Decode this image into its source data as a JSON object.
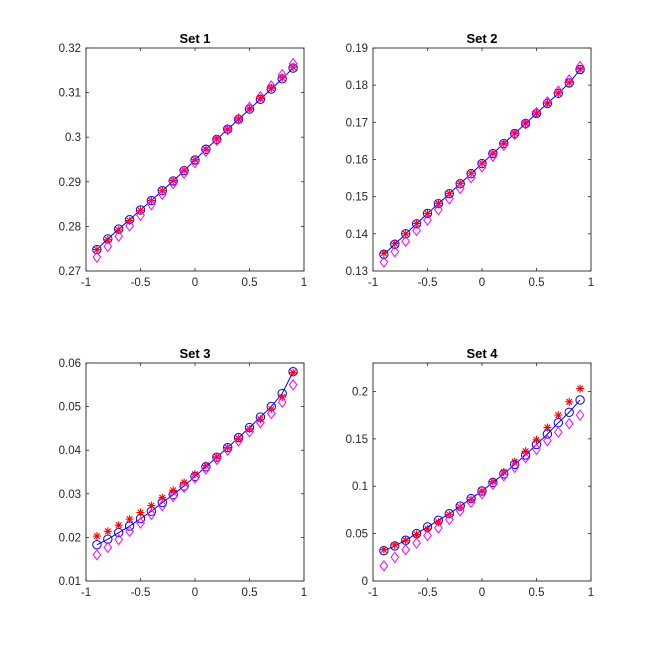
{
  "figure": {
    "background": "#ffffff"
  },
  "series_styles": [
    {
      "marker": "circle",
      "line": true,
      "color": "#0000ff"
    },
    {
      "marker": "asterisk",
      "line": false,
      "color": "#ff0000"
    },
    {
      "marker": "diamond",
      "line": false,
      "color": "#ff00ff"
    }
  ],
  "chart_data": [
    {
      "type": "line",
      "title": "Set 1",
      "xlim": [
        -1,
        1
      ],
      "ylim": [
        0.27,
        0.32
      ],
      "grid": true,
      "xticks": [
        -1,
        -0.5,
        0,
        0.5,
        1
      ],
      "xtick_labels": [
        "-1",
        "-0.5",
        "0",
        "0.5",
        "1"
      ],
      "yticks": [
        0.27,
        0.28,
        0.29,
        0.3,
        0.31,
        0.32
      ],
      "ytick_labels": [
        "0.27",
        "0.28",
        "0.29",
        "0.3",
        "0.31",
        "0.32"
      ],
      "x": [
        -0.9,
        -0.8,
        -0.7,
        -0.6,
        -0.5,
        -0.4,
        -0.3,
        -0.2,
        -0.1,
        0.0,
        0.1,
        0.2,
        0.3,
        0.4,
        0.5,
        0.6,
        0.7,
        0.8,
        0.9
      ],
      "series": [
        {
          "values": [
            0.2748,
            0.2772,
            0.2794,
            0.2815,
            0.2837,
            0.2858,
            0.288,
            0.2902,
            0.2925,
            0.2949,
            0.2973,
            0.2995,
            0.3018,
            0.304,
            0.3063,
            0.3085,
            0.3108,
            0.3131,
            0.3155
          ]
        },
        {
          "values": [
            0.2748,
            0.277,
            0.2792,
            0.2813,
            0.2836,
            0.2858,
            0.288,
            0.2903,
            0.2926,
            0.295,
            0.2973,
            0.2996,
            0.3018,
            0.3041,
            0.3064,
            0.3087,
            0.311,
            0.3133,
            0.3157
          ]
        },
        {
          "values": [
            0.2731,
            0.2755,
            0.2778,
            0.2801,
            0.2825,
            0.2849,
            0.2872,
            0.2896,
            0.2919,
            0.2943,
            0.2968,
            0.2993,
            0.3017,
            0.3041,
            0.3067,
            0.3091,
            0.3115,
            0.314,
            0.3165
          ]
        }
      ]
    },
    {
      "type": "line",
      "title": "Set 2",
      "xlim": [
        -1,
        1
      ],
      "ylim": [
        0.13,
        0.19
      ],
      "grid": true,
      "xticks": [
        -1,
        -0.5,
        0,
        0.5,
        1
      ],
      "xtick_labels": [
        "-1",
        "-0.5",
        "0",
        "0.5",
        "1"
      ],
      "yticks": [
        0.13,
        0.14,
        0.15,
        0.16,
        0.17,
        0.18,
        0.19
      ],
      "ytick_labels": [
        "0.13",
        "0.14",
        "0.15",
        "0.16",
        "0.17",
        "0.18",
        "0.19"
      ],
      "x": [
        -0.9,
        -0.8,
        -0.7,
        -0.6,
        -0.5,
        -0.4,
        -0.3,
        -0.2,
        -0.1,
        0.0,
        0.1,
        0.2,
        0.3,
        0.4,
        0.5,
        0.6,
        0.7,
        0.8,
        0.9
      ],
      "series": [
        {
          "values": [
            0.1345,
            0.1372,
            0.14,
            0.1427,
            0.1455,
            0.1481,
            0.1508,
            0.1535,
            0.1562,
            0.1589,
            0.1616,
            0.1643,
            0.167,
            0.1697,
            0.1724,
            0.1751,
            0.1778,
            0.1806,
            0.1842
          ]
        },
        {
          "values": [
            0.1348,
            0.1374,
            0.14,
            0.1428,
            0.1455,
            0.1482,
            0.1509,
            0.1536,
            0.1563,
            0.159,
            0.1617,
            0.1644,
            0.1671,
            0.1698,
            0.1725,
            0.1752,
            0.1779,
            0.1807,
            0.1843
          ]
        },
        {
          "values": [
            0.1324,
            0.1352,
            0.138,
            0.1409,
            0.1437,
            0.1465,
            0.1494,
            0.1522,
            0.1551,
            0.158,
            0.1609,
            0.1638,
            0.1667,
            0.1696,
            0.1726,
            0.1755,
            0.1784,
            0.1814,
            0.185
          ]
        }
      ]
    },
    {
      "type": "line",
      "title": "Set 3",
      "xlim": [
        -1,
        1
      ],
      "ylim": [
        0.01,
        0.06
      ],
      "grid": true,
      "xticks": [
        -1,
        -0.5,
        0,
        0.5,
        1
      ],
      "xtick_labels": [
        "-1",
        "-0.5",
        "0",
        "0.5",
        "1"
      ],
      "yticks": [
        0.01,
        0.02,
        0.03,
        0.04,
        0.05,
        0.06
      ],
      "ytick_labels": [
        "0.01",
        "0.02",
        "0.03",
        "0.04",
        "0.05",
        "0.06"
      ],
      "x": [
        -0.9,
        -0.8,
        -0.7,
        -0.6,
        -0.5,
        -0.4,
        -0.3,
        -0.2,
        -0.1,
        0.0,
        0.1,
        0.2,
        0.3,
        0.4,
        0.5,
        0.6,
        0.7,
        0.8,
        0.9
      ],
      "series": [
        {
          "values": [
            0.0183,
            0.0196,
            0.0211,
            0.0226,
            0.0243,
            0.026,
            0.028,
            0.0298,
            0.0318,
            0.034,
            0.0362,
            0.0384,
            0.0406,
            0.0429,
            0.0452,
            0.0476,
            0.05,
            0.053,
            0.058
          ]
        },
        {
          "values": [
            0.0203,
            0.0214,
            0.0228,
            0.0242,
            0.0257,
            0.0273,
            0.0291,
            0.0308,
            0.0326,
            0.0345,
            0.0365,
            0.0385,
            0.0406,
            0.0427,
            0.0449,
            0.0471,
            0.0494,
            0.0522,
            0.0578
          ]
        },
        {
          "values": [
            0.016,
            0.0177,
            0.0195,
            0.0214,
            0.0233,
            0.0253,
            0.0273,
            0.0294,
            0.0315,
            0.0336,
            0.0357,
            0.0379,
            0.04,
            0.0421,
            0.0442,
            0.0463,
            0.0484,
            0.051,
            0.055
          ]
        }
      ]
    },
    {
      "type": "line",
      "title": "Set 4",
      "xlim": [
        -1,
        1
      ],
      "ylim": [
        0,
        0.23
      ],
      "grid": true,
      "xticks": [
        -1,
        -0.5,
        0,
        0.5,
        1
      ],
      "xtick_labels": [
        "-1",
        "-0.5",
        "0",
        "0.5",
        "1"
      ],
      "yticks": [
        0,
        0.05,
        0.1,
        0.15,
        0.2
      ],
      "ytick_labels": [
        "0",
        "0.05",
        "0.1",
        "0.15",
        "0.2"
      ],
      "x": [
        -0.9,
        -0.8,
        -0.7,
        -0.6,
        -0.5,
        -0.4,
        -0.3,
        -0.2,
        -0.1,
        0.0,
        0.1,
        0.2,
        0.3,
        0.4,
        0.5,
        0.6,
        0.7,
        0.8,
        0.9
      ],
      "series": [
        {
          "values": [
            0.032,
            0.037,
            0.043,
            0.05,
            0.057,
            0.064,
            0.071,
            0.079,
            0.087,
            0.095,
            0.104,
            0.113,
            0.123,
            0.133,
            0.144,
            0.155,
            0.167,
            0.178,
            0.191
          ]
        },
        {
          "values": [
            0.033,
            0.038,
            0.043,
            0.049,
            0.055,
            0.062,
            0.07,
            0.078,
            0.086,
            0.095,
            0.105,
            0.115,
            0.126,
            0.137,
            0.149,
            0.162,
            0.175,
            0.189,
            0.203
          ]
        },
        {
          "values": [
            0.016,
            0.025,
            0.033,
            0.04,
            0.048,
            0.056,
            0.065,
            0.074,
            0.083,
            0.092,
            0.102,
            0.111,
            0.12,
            0.13,
            0.139,
            0.148,
            0.157,
            0.166,
            0.175
          ]
        }
      ]
    }
  ]
}
